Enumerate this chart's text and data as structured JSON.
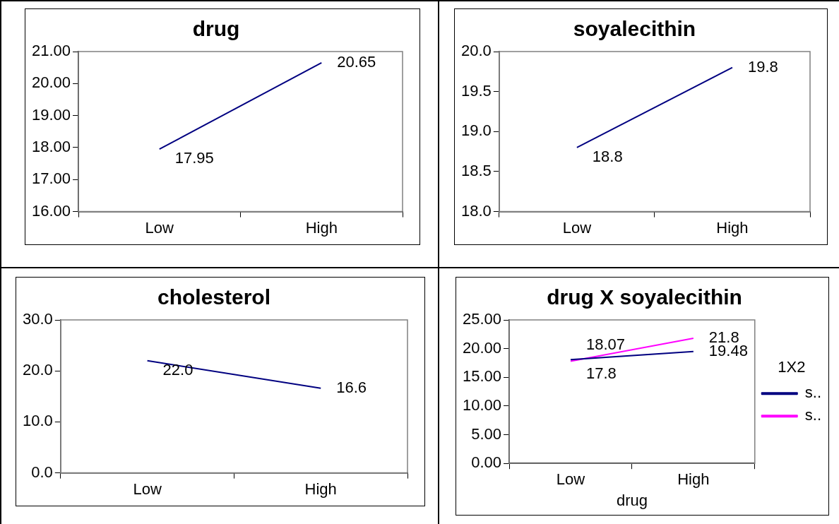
{
  "chart_data": [
    {
      "type": "line",
      "title": "drug",
      "categories": [
        "Low",
        "High"
      ],
      "series": [
        {
          "color": "#000080",
          "values": [
            17.95,
            20.65
          ],
          "value_labels": [
            "17.95",
            "20.65"
          ]
        }
      ],
      "ylim": [
        16,
        21
      ],
      "yticks": [
        {
          "value": 16,
          "label": "16.00"
        },
        {
          "value": 17,
          "label": "17.00"
        },
        {
          "value": 18,
          "label": "18.00"
        },
        {
          "value": 19,
          "label": "19.00"
        },
        {
          "value": 20,
          "label": "20.00"
        },
        {
          "value": 21,
          "label": "21.00"
        }
      ],
      "grid": false,
      "legend": false,
      "marker": "none",
      "line_style": "solid"
    },
    {
      "type": "line",
      "title": "soyalecithin",
      "categories": [
        "Low",
        "High"
      ],
      "series": [
        {
          "color": "#000080",
          "values": [
            18.8,
            19.8
          ],
          "value_labels": [
            "18.8",
            "19.8"
          ]
        }
      ],
      "ylim": [
        18,
        20
      ],
      "yticks": [
        {
          "value": 18,
          "label": "18.0"
        },
        {
          "value": 18.5,
          "label": "18.5"
        },
        {
          "value": 19,
          "label": "19.0"
        },
        {
          "value": 19.5,
          "label": "19.5"
        },
        {
          "value": 20,
          "label": "20.0"
        }
      ],
      "grid": false,
      "legend": false,
      "marker": "none",
      "line_style": "solid"
    },
    {
      "type": "line",
      "title": "cholesterol",
      "categories": [
        "Low",
        "High"
      ],
      "series": [
        {
          "color": "#000080",
          "values": [
            22.0,
            16.6
          ],
          "value_labels": [
            "22.0",
            "16.6"
          ]
        }
      ],
      "ylim": [
        0,
        30
      ],
      "yticks": [
        {
          "value": 0,
          "label": "0.0"
        },
        {
          "value": 10,
          "label": "10.0"
        },
        {
          "value": 20,
          "label": "20.0"
        },
        {
          "value": 30,
          "label": "30.0"
        }
      ],
      "grid": false,
      "legend": false,
      "marker": "none",
      "line_style": "solid"
    },
    {
      "type": "line",
      "title": "drug X soyalecithin",
      "xlabel": "drug",
      "legend_title": "1X2",
      "categories": [
        "Low",
        "High"
      ],
      "series": [
        {
          "name": "s..",
          "color": "#000080",
          "values": [
            18.07,
            19.48
          ],
          "value_labels": [
            "18.07",
            "19.48"
          ]
        },
        {
          "name": "s..",
          "color": "#ff00ff",
          "values": [
            17.8,
            21.8
          ],
          "value_labels": [
            "17.8",
            "21.8"
          ]
        }
      ],
      "ylim": [
        0,
        25
      ],
      "yticks": [
        {
          "value": 0,
          "label": "0.00"
        },
        {
          "value": 5,
          "label": "5.00"
        },
        {
          "value": 10,
          "label": "10.00"
        },
        {
          "value": 15,
          "label": "15.00"
        },
        {
          "value": 20,
          "label": "20.00"
        },
        {
          "value": 25,
          "label": "25.00"
        }
      ],
      "grid": false,
      "legend": "right",
      "marker": "none",
      "line_style": "solid"
    }
  ]
}
